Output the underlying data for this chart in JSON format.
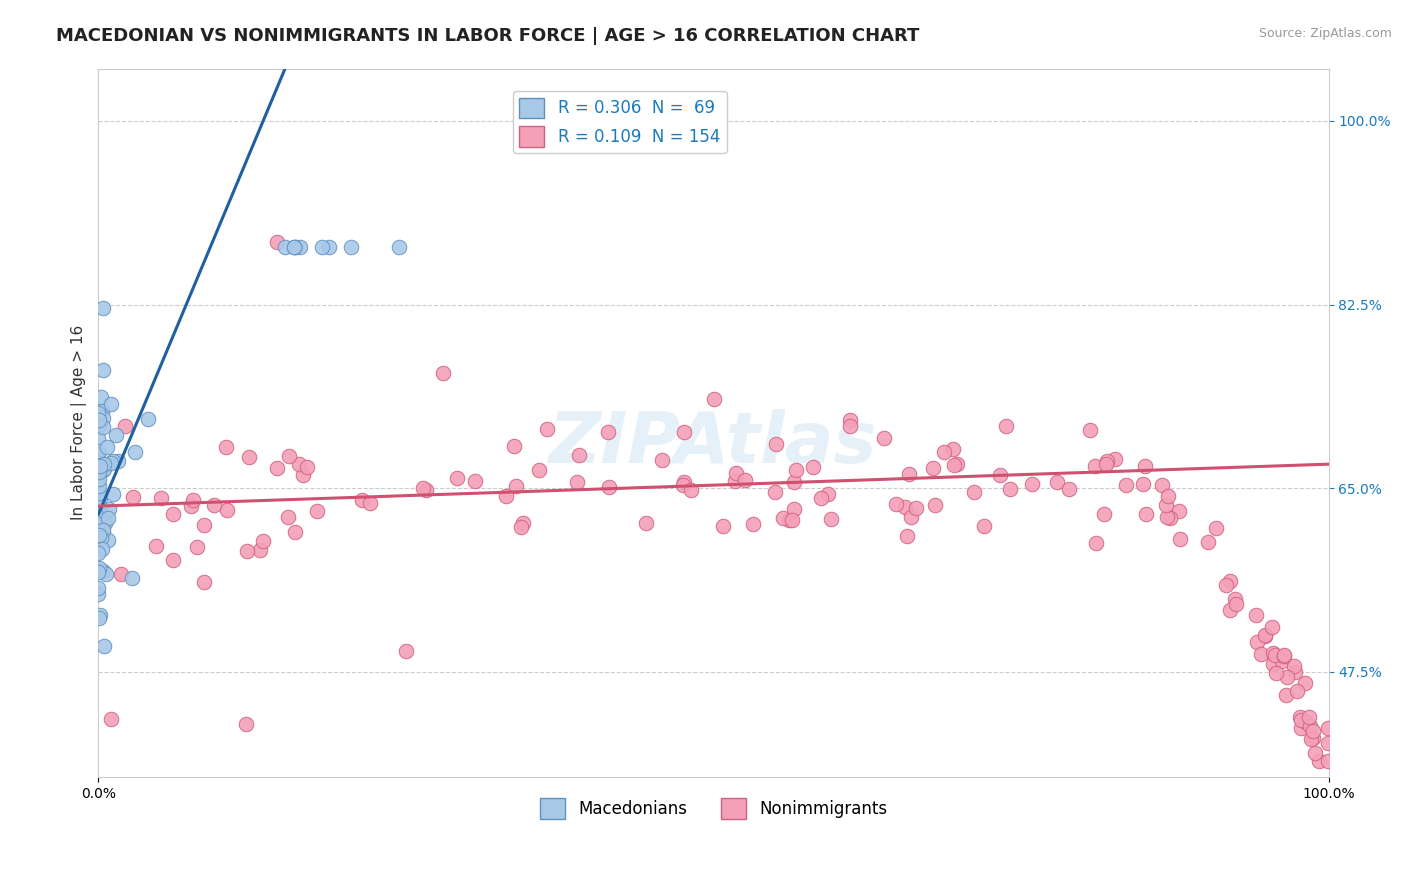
{
  "title": "MACEDONIAN VS NONIMMIGRANTS IN LABOR FORCE | AGE > 16 CORRELATION CHART",
  "source_text": "Source: ZipAtlas.com",
  "ylabel": "In Labor Force | Age > 16",
  "xlim": [
    0.0,
    1.0
  ],
  "ylim": [
    0.375,
    1.05
  ],
  "yticks": [
    0.475,
    0.65,
    0.825,
    1.0
  ],
  "ytick_labels": [
    "47.5%",
    "65.0%",
    "82.5%",
    "100.0%"
  ],
  "xticks": [
    0.0,
    1.0
  ],
  "xtick_labels": [
    "0.0%",
    "100.0%"
  ],
  "macedonian_color": "#a8c8e8",
  "nonimmigrant_color": "#f4a0b8",
  "macedonian_edge": "#6090c0",
  "nonimmigrant_edge": "#d06080",
  "trend_blue": "#2060a0",
  "trend_pink": "#d05070",
  "R_macedonian": 0.306,
  "N_macedonian": 69,
  "R_nonimmigrant": 0.109,
  "N_nonimmigrant": 154,
  "watermark": "ZIPAtlas",
  "background_color": "#ffffff",
  "grid_color": "#cccccc",
  "title_fontsize": 13,
  "axis_label_fontsize": 11,
  "tick_fontsize": 10,
  "legend_fontsize": 12,
  "mac_trend_slope": 2.8,
  "mac_trend_intercept": 0.625,
  "non_trend_slope": 0.04,
  "non_trend_intercept": 0.633
}
